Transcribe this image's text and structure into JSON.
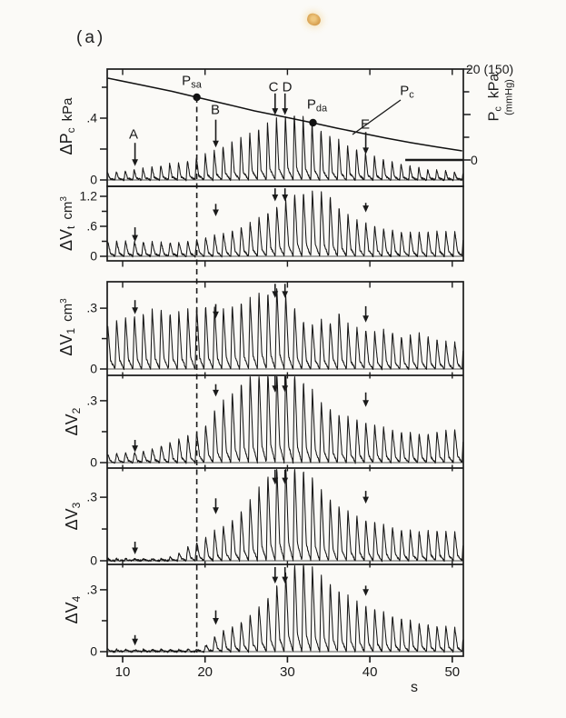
{
  "figure": {
    "label": "(a)"
  },
  "scan_mark": {
    "color": "#cf8f35"
  },
  "chart_data": {
    "type": "line",
    "title": "(a)",
    "x": {
      "label": "s",
      "ticks": [
        10,
        20,
        30,
        40,
        50
      ],
      "range": [
        8.1,
        51.3
      ]
    },
    "breath_period_s": 1.08,
    "dashed_line_t": 19.0,
    "events": [
      {
        "id": "A",
        "t": 11.5
      },
      {
        "id": "B",
        "t": 21.3
      },
      {
        "id": "C",
        "t": 28.5
      },
      {
        "id": "D",
        "t": 29.7
      },
      {
        "id": "E",
        "t": 39.5
      }
    ],
    "pc_line": {
      "name": "Pc",
      "units": "kPa",
      "label": {
        "main": "P",
        "sub": "c"
      },
      "axis": {
        "max_label": "20 (150)",
        "min_label": "0",
        "ticks": [
          0,
          5,
          10,
          15,
          20
        ],
        "side_label": {
          "main": "P",
          "sub": "c",
          "unit": "kPa",
          "paren": "(mmHg)"
        }
      },
      "points": [
        [
          8.2,
          18
        ],
        [
          12,
          16.6
        ],
        [
          16,
          15.1
        ],
        [
          19,
          13.8
        ],
        [
          23,
          12.1
        ],
        [
          26,
          10.8
        ],
        [
          29,
          9.7
        ],
        [
          33,
          8.2
        ],
        [
          36,
          7.0
        ],
        [
          39,
          5.9
        ],
        [
          42,
          4.8
        ],
        [
          45,
          3.8
        ],
        [
          48,
          2.9
        ],
        [
          51.2,
          2.0
        ]
      ],
      "zero_line_t": [
        44.3,
        51.3
      ],
      "markers": [
        {
          "id": "Psa",
          "label_main": "P",
          "label_sub": "sa",
          "t": 19.0,
          "kpa": 13.8
        },
        {
          "id": "Pda",
          "label_main": "P",
          "label_sub": "da",
          "t": 33.1,
          "kpa": 8.2
        }
      ]
    },
    "panels": [
      {
        "id": "dPc",
        "ylabel": {
          "main": "ΔP",
          "sub": "c",
          "unit": "kPa",
          "unit_sup": ""
        },
        "ylim": [
          0,
          0.72
        ],
        "yticks": [
          {
            "v": 0,
            "label": "0",
            "major": true
          },
          {
            "v": 0.2,
            "label": "",
            "major": true
          },
          {
            "v": 0.4,
            "label": ".4",
            "major": true
          },
          {
            "v": 0.6,
            "label": "",
            "major": false
          }
        ],
        "envelope": [
          [
            8.2,
            0.05
          ],
          [
            12,
            0.07
          ],
          [
            15,
            0.1
          ],
          [
            18,
            0.13
          ],
          [
            20,
            0.17
          ],
          [
            22,
            0.22
          ],
          [
            25,
            0.3
          ],
          [
            27,
            0.36
          ],
          [
            29,
            0.42
          ],
          [
            31,
            0.44
          ],
          [
            33,
            0.38
          ],
          [
            35,
            0.3
          ],
          [
            37,
            0.24
          ],
          [
            39,
            0.19
          ],
          [
            41,
            0.15
          ],
          [
            44,
            0.1
          ],
          [
            47,
            0.07
          ],
          [
            51.3,
            0.05
          ]
        ],
        "arrows": [
          {
            "event": "A",
            "from": 0.24,
            "tip": 0.09
          },
          {
            "event": "B",
            "from": 0.39,
            "tip": 0.21
          },
          {
            "event": "C",
            "from": 0.56,
            "tip": 0.42
          },
          {
            "event": "D",
            "from": 0.56,
            "tip": 0.42
          },
          {
            "event": "E",
            "from": 0.31,
            "tip": 0.165
          }
        ]
      },
      {
        "id": "dVt",
        "ylabel": {
          "main": "ΔV",
          "sub": "t",
          "unit": "cm",
          "unit_sup": "3"
        },
        "ylim": [
          0,
          1.4
        ],
        "yticks": [
          {
            "v": 0,
            "label": "0",
            "major": true
          },
          {
            "v": 0.3,
            "label": "",
            "major": false
          },
          {
            "v": 0.6,
            "label": ".6",
            "major": true
          },
          {
            "v": 0.9,
            "label": "",
            "major": false
          },
          {
            "v": 1.2,
            "label": "1.2",
            "major": true
          }
        ],
        "envelope": [
          [
            8.2,
            0.3
          ],
          [
            12,
            0.3
          ],
          [
            15,
            0.28
          ],
          [
            18,
            0.3
          ],
          [
            20,
            0.38
          ],
          [
            22,
            0.45
          ],
          [
            24,
            0.55
          ],
          [
            26,
            0.72
          ],
          [
            28,
            0.95
          ],
          [
            30,
            1.15
          ],
          [
            31,
            1.3
          ],
          [
            33,
            1.32
          ],
          [
            35,
            1.28
          ],
          [
            36,
            1.05
          ],
          [
            37,
            0.9
          ],
          [
            38,
            0.78
          ],
          [
            40,
            0.65
          ],
          [
            42,
            0.55
          ],
          [
            44,
            0.5
          ],
          [
            46,
            0.48
          ],
          [
            48,
            0.52
          ],
          [
            50,
            0.48
          ],
          [
            51.3,
            0.55
          ]
        ],
        "arrows": [
          {
            "event": "A",
            "from": 0.58,
            "tip": 0.29
          },
          {
            "event": "B",
            "from": 1.05,
            "tip": 0.8
          },
          {
            "event": "C",
            "from": 1.36,
            "tip": 1.1
          },
          {
            "event": "D",
            "from": 1.36,
            "tip": 1.1
          },
          {
            "event": "E",
            "from": 1.07,
            "tip": 0.88
          }
        ]
      },
      {
        "id": "dV1",
        "ylabel": {
          "main": "ΔV",
          "sub": "1",
          "unit": "cm",
          "unit_sup": "3"
        },
        "ylim": [
          0,
          0.45
        ],
        "yticks": [
          {
            "v": 0,
            "label": "0",
            "major": true
          },
          {
            "v": 0.15,
            "label": "",
            "major": false
          },
          {
            "v": 0.3,
            "label": ".3",
            "major": true
          }
        ],
        "envelope": [
          [
            8.2,
            0.22
          ],
          [
            10,
            0.26
          ],
          [
            12,
            0.27
          ],
          [
            14,
            0.3
          ],
          [
            16,
            0.28
          ],
          [
            18,
            0.3
          ],
          [
            20,
            0.32
          ],
          [
            22,
            0.3
          ],
          [
            24,
            0.33
          ],
          [
            26,
            0.36
          ],
          [
            27,
            0.4
          ],
          [
            28,
            0.38
          ],
          [
            29,
            0.42
          ],
          [
            30,
            0.36
          ],
          [
            31,
            0.3
          ],
          [
            32,
            0.24
          ],
          [
            33,
            0.22
          ],
          [
            34,
            0.25
          ],
          [
            35,
            0.22
          ],
          [
            36,
            0.3
          ],
          [
            37,
            0.24
          ],
          [
            38,
            0.2
          ],
          [
            39,
            0.22
          ],
          [
            40,
            0.18
          ],
          [
            42,
            0.2
          ],
          [
            44,
            0.16
          ],
          [
            46,
            0.18
          ],
          [
            48,
            0.15
          ],
          [
            50,
            0.13
          ],
          [
            51.3,
            0.15
          ]
        ],
        "arrows": [
          {
            "event": "A",
            "from": 0.34,
            "tip": 0.27
          },
          {
            "event": "B",
            "from": 0.32,
            "tip": 0.25
          },
          {
            "event": "C",
            "from": 0.42,
            "tip": 0.35
          },
          {
            "event": "D",
            "from": 0.42,
            "tip": 0.35
          },
          {
            "event": "E",
            "from": 0.31,
            "tip": 0.23
          }
        ]
      },
      {
        "id": "dV2",
        "ylabel": {
          "main": "ΔV",
          "sub": "2",
          "unit": "",
          "unit_sup": ""
        },
        "ylim": [
          0,
          0.45
        ],
        "yticks": [
          {
            "v": 0,
            "label": "0",
            "major": true
          },
          {
            "v": 0.15,
            "label": "",
            "major": false
          },
          {
            "v": 0.3,
            "label": ".3",
            "major": true
          }
        ],
        "envelope": [
          [
            8.2,
            0.04
          ],
          [
            11,
            0.05
          ],
          [
            13,
            0.06
          ],
          [
            15,
            0.09
          ],
          [
            17,
            0.12
          ],
          [
            19,
            0.15
          ],
          [
            20,
            0.18
          ],
          [
            21,
            0.25
          ],
          [
            22,
            0.3
          ],
          [
            23,
            0.33
          ],
          [
            24,
            0.38
          ],
          [
            25,
            0.42
          ],
          [
            26,
            0.45
          ],
          [
            28,
            0.46
          ],
          [
            30,
            0.46
          ],
          [
            31,
            0.44
          ],
          [
            32,
            0.4
          ],
          [
            33,
            0.36
          ],
          [
            34,
            0.3
          ],
          [
            35,
            0.27
          ],
          [
            36,
            0.24
          ],
          [
            38,
            0.22
          ],
          [
            40,
            0.19
          ],
          [
            42,
            0.17
          ],
          [
            44,
            0.15
          ],
          [
            46,
            0.14
          ],
          [
            48,
            0.15
          ],
          [
            50,
            0.16
          ],
          [
            51.3,
            0.18
          ]
        ],
        "arrows": [
          {
            "event": "A",
            "from": 0.11,
            "tip": 0.05
          },
          {
            "event": "B",
            "from": 0.38,
            "tip": 0.32
          },
          {
            "event": "C",
            "from": 0.42,
            "tip": 0.34
          },
          {
            "event": "D",
            "from": 0.42,
            "tip": 0.34
          },
          {
            "event": "E",
            "from": 0.34,
            "tip": 0.27
          }
        ]
      },
      {
        "id": "dV3",
        "ylabel": {
          "main": "ΔV",
          "sub": "3",
          "unit": "",
          "unit_sup": ""
        },
        "ylim": [
          0,
          0.45
        ],
        "yticks": [
          {
            "v": 0,
            "label": "0",
            "major": true
          },
          {
            "v": 0.15,
            "label": "",
            "major": false
          },
          {
            "v": 0.3,
            "label": ".3",
            "major": true
          }
        ],
        "envelope": [
          [
            8.2,
            0.01
          ],
          [
            15,
            0.01
          ],
          [
            16,
            0.02
          ],
          [
            17,
            0.04
          ],
          [
            18,
            0.07
          ],
          [
            19,
            0.09
          ],
          [
            20,
            0.11
          ],
          [
            21,
            0.14
          ],
          [
            22,
            0.16
          ],
          [
            23,
            0.19
          ],
          [
            24,
            0.22
          ],
          [
            25,
            0.27
          ],
          [
            26,
            0.32
          ],
          [
            27,
            0.38
          ],
          [
            28,
            0.43
          ],
          [
            29,
            0.46
          ],
          [
            30,
            0.47
          ],
          [
            31,
            0.46
          ],
          [
            32,
            0.44
          ],
          [
            33,
            0.4
          ],
          [
            34,
            0.35
          ],
          [
            35,
            0.3
          ],
          [
            36,
            0.27
          ],
          [
            37,
            0.25
          ],
          [
            38,
            0.22
          ],
          [
            39,
            0.21
          ],
          [
            40,
            0.19
          ],
          [
            42,
            0.17
          ],
          [
            44,
            0.15
          ],
          [
            46,
            0.14
          ],
          [
            48,
            0.15
          ],
          [
            50,
            0.14
          ],
          [
            51.3,
            0.13
          ]
        ],
        "arrows": [
          {
            "event": "A",
            "from": 0.09,
            "tip": 0.03
          },
          {
            "event": "B",
            "from": 0.295,
            "tip": 0.22
          },
          {
            "event": "C",
            "from": 0.43,
            "tip": 0.36
          },
          {
            "event": "D",
            "from": 0.43,
            "tip": 0.36
          },
          {
            "event": "E",
            "from": 0.33,
            "tip": 0.27
          }
        ]
      },
      {
        "id": "dV4",
        "ylabel": {
          "main": "ΔV",
          "sub": "4",
          "unit": "",
          "unit_sup": ""
        },
        "ylim": [
          0,
          0.45
        ],
        "yticks": [
          {
            "v": 0,
            "label": "0",
            "major": true
          },
          {
            "v": 0.15,
            "label": "",
            "major": false
          },
          {
            "v": 0.3,
            "label": ".3",
            "major": true
          }
        ],
        "envelope": [
          [
            8.2,
            0.01
          ],
          [
            19,
            0.01
          ],
          [
            20,
            0.03
          ],
          [
            21,
            0.07
          ],
          [
            22,
            0.1
          ],
          [
            23,
            0.12
          ],
          [
            24,
            0.14
          ],
          [
            25,
            0.16
          ],
          [
            26,
            0.2
          ],
          [
            27,
            0.24
          ],
          [
            28,
            0.29
          ],
          [
            29,
            0.34
          ],
          [
            30,
            0.4
          ],
          [
            31,
            0.45
          ],
          [
            32,
            0.46
          ],
          [
            33,
            0.42
          ],
          [
            34,
            0.38
          ],
          [
            35,
            0.34
          ],
          [
            36,
            0.31
          ],
          [
            37,
            0.28
          ],
          [
            38,
            0.26
          ],
          [
            39,
            0.24
          ],
          [
            40,
            0.22
          ],
          [
            42,
            0.19
          ],
          [
            44,
            0.16
          ],
          [
            46,
            0.14
          ],
          [
            48,
            0.13
          ],
          [
            50,
            0.12
          ],
          [
            51.3,
            0.11
          ]
        ],
        "arrows": [
          {
            "event": "A",
            "from": 0.08,
            "tip": 0.03
          },
          {
            "event": "B",
            "from": 0.2,
            "tip": 0.13
          },
          {
            "event": "C",
            "from": 0.41,
            "tip": 0.33
          },
          {
            "event": "D",
            "from": 0.41,
            "tip": 0.33
          },
          {
            "event": "E",
            "from": 0.32,
            "tip": 0.27
          }
        ]
      }
    ]
  }
}
